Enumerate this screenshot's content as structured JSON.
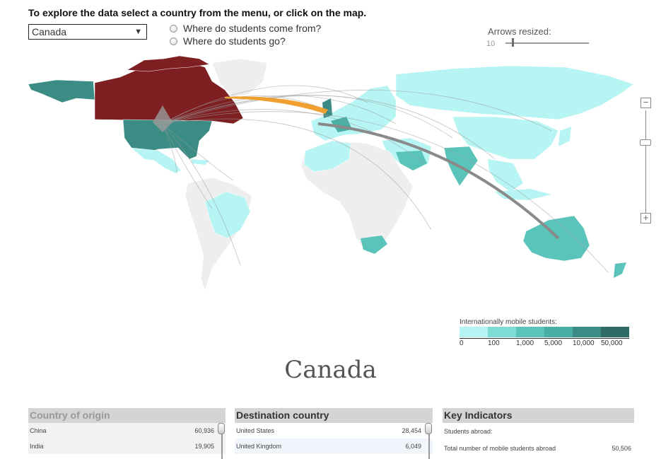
{
  "instruction": "To explore the data select a country from the menu, or click on the map.",
  "country_select": {
    "value": "Canada",
    "caret": "▼"
  },
  "radios": [
    {
      "label": "Where do students come from?"
    },
    {
      "label": "Where do students go?"
    }
  ],
  "arrows": {
    "label": "Arrows resized:",
    "value": "10"
  },
  "zoom": {
    "minus": "−",
    "plus": "+"
  },
  "legend": {
    "title": "Internationally mobile students:",
    "labels": [
      "0",
      "100",
      "1,000",
      "5,000",
      "10,000",
      "50,000"
    ],
    "colors": [
      "#b6f5f3",
      "#7ddcd3",
      "#5bc4ba",
      "#49aea3",
      "#3a8c84",
      "#2e6b64"
    ]
  },
  "colors": {
    "selected_country": "#7e1f22",
    "highlight_flow": "#f0a030",
    "flow_line": "#999999",
    "land_default": "#eeeeee"
  },
  "selected_country_name": "Canada",
  "panels": {
    "origin": {
      "title": "Country of origin",
      "rows": [
        {
          "name": "China",
          "value": "60,936"
        },
        {
          "name": "India",
          "value": "19,905"
        }
      ]
    },
    "destination": {
      "title": "Destination country",
      "rows": [
        {
          "name": "United States",
          "value": "28,454"
        },
        {
          "name": "United Kingdom",
          "value": "6,049"
        }
      ]
    },
    "indicators": {
      "title": "Key Indicators",
      "rows": [
        {
          "name": "Students abroad:",
          "value": ""
        },
        {
          "name": "Total number of mobile students abroad",
          "value": "50,506"
        }
      ]
    }
  }
}
